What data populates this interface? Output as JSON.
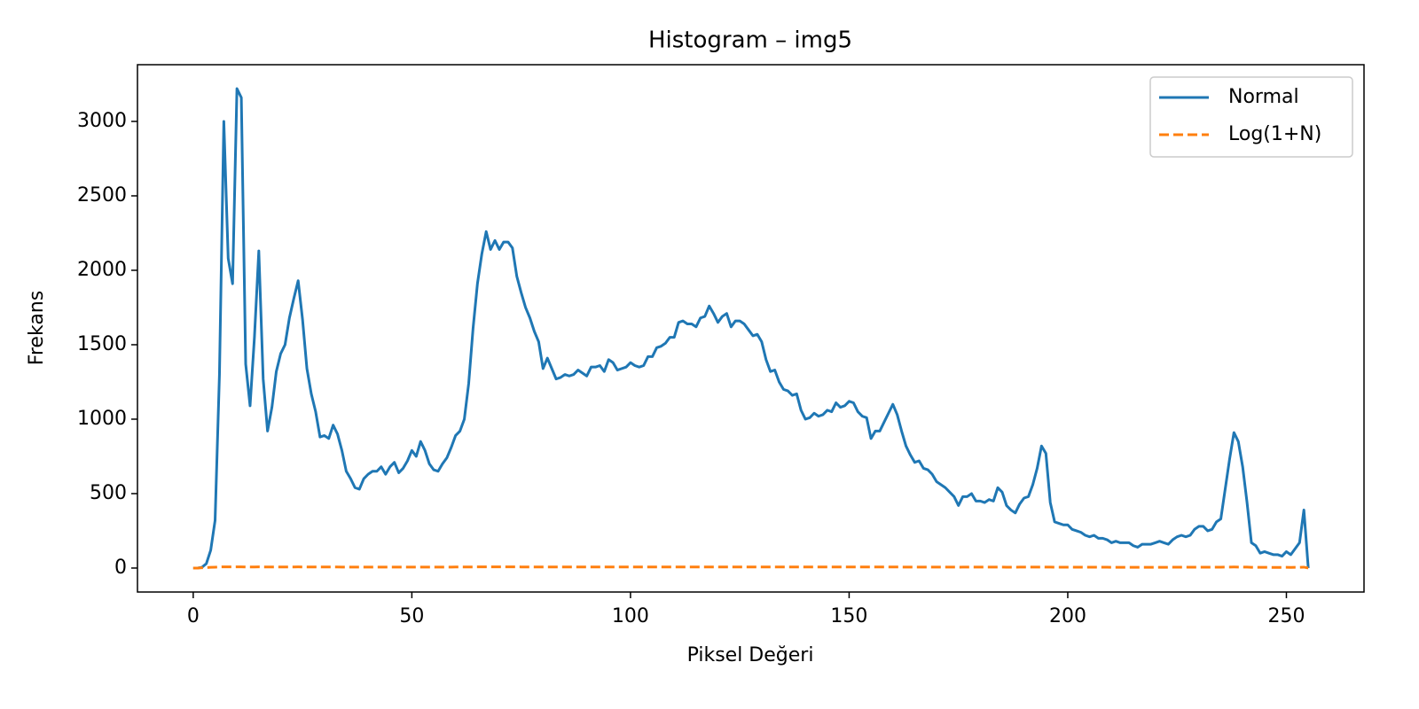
{
  "chart_data": {
    "type": "line",
    "title": "Histogram – img5",
    "x_label": "Piksel Değeri",
    "y_label": "Frekans",
    "x": [
      0,
      1,
      2,
      3,
      4,
      5,
      6,
      7,
      8,
      9,
      10,
      11,
      12,
      13,
      14,
      15,
      16,
      17,
      18,
      19,
      20,
      21,
      22,
      23,
      24,
      25,
      26,
      27,
      28,
      29,
      30,
      31,
      32,
      33,
      34,
      35,
      36,
      37,
      38,
      39,
      40,
      41,
      42,
      43,
      44,
      45,
      46,
      47,
      48,
      49,
      50,
      51,
      52,
      53,
      54,
      55,
      56,
      57,
      58,
      59,
      60,
      61,
      62,
      63,
      64,
      65,
      66,
      67,
      68,
      69,
      70,
      71,
      72,
      73,
      74,
      75,
      76,
      77,
      78,
      79,
      80,
      81,
      82,
      83,
      84,
      85,
      86,
      87,
      88,
      89,
      90,
      91,
      92,
      93,
      94,
      95,
      96,
      97,
      98,
      99,
      100,
      101,
      102,
      103,
      104,
      105,
      106,
      107,
      108,
      109,
      110,
      111,
      112,
      113,
      114,
      115,
      116,
      117,
      118,
      119,
      120,
      121,
      122,
      123,
      124,
      125,
      126,
      127,
      128,
      129,
      130,
      131,
      132,
      133,
      134,
      135,
      136,
      137,
      138,
      139,
      140,
      141,
      142,
      143,
      144,
      145,
      146,
      147,
      148,
      149,
      150,
      151,
      152,
      153,
      154,
      155,
      156,
      157,
      158,
      159,
      160,
      161,
      162,
      163,
      164,
      165,
      166,
      167,
      168,
      169,
      170,
      171,
      172,
      173,
      174,
      175,
      176,
      177,
      178,
      179,
      180,
      181,
      182,
      183,
      184,
      185,
      186,
      187,
      188,
      189,
      190,
      191,
      192,
      193,
      194,
      195,
      196,
      197,
      198,
      199,
      200,
      201,
      202,
      203,
      204,
      205,
      206,
      207,
      208,
      209,
      210,
      211,
      212,
      213,
      214,
      215,
      216,
      217,
      218,
      219,
      220,
      221,
      222,
      223,
      224,
      225,
      226,
      227,
      228,
      229,
      230,
      231,
      232,
      233,
      234,
      235,
      236,
      237,
      238,
      239,
      240,
      241,
      242,
      243,
      244,
      245,
      246,
      247,
      248,
      249,
      250,
      251,
      252,
      253,
      254,
      255
    ],
    "series": [
      {
        "name": "Normal",
        "color": "#1f77b4",
        "dash": false,
        "values": [
          0,
          0,
          5,
          30,
          120,
          320,
          1300,
          3000,
          2080,
          1910,
          3220,
          3160,
          1370,
          1090,
          1550,
          2130,
          1270,
          920,
          1080,
          1320,
          1440,
          1500,
          1680,
          1810,
          1930,
          1670,
          1340,
          1170,
          1050,
          880,
          890,
          870,
          960,
          900,
          790,
          650,
          600,
          540,
          530,
          600,
          630,
          650,
          650,
          680,
          630,
          680,
          710,
          640,
          670,
          720,
          790,
          750,
          850,
          790,
          700,
          660,
          650,
          700,
          740,
          810,
          890,
          920,
          1000,
          1240,
          1610,
          1910,
          2110,
          2260,
          2140,
          2200,
          2140,
          2190,
          2190,
          2150,
          1960,
          1850,
          1750,
          1680,
          1590,
          1520,
          1340,
          1410,
          1340,
          1270,
          1280,
          1300,
          1290,
          1300,
          1330,
          1310,
          1290,
          1350,
          1350,
          1360,
          1320,
          1400,
          1380,
          1330,
          1340,
          1350,
          1380,
          1360,
          1350,
          1360,
          1420,
          1420,
          1480,
          1490,
          1510,
          1550,
          1550,
          1650,
          1660,
          1640,
          1640,
          1620,
          1680,
          1690,
          1760,
          1710,
          1650,
          1690,
          1710,
          1620,
          1660,
          1660,
          1640,
          1600,
          1560,
          1570,
          1520,
          1400,
          1320,
          1330,
          1250,
          1200,
          1190,
          1160,
          1170,
          1060,
          1000,
          1010,
          1040,
          1020,
          1030,
          1060,
          1050,
          1110,
          1080,
          1090,
          1120,
          1110,
          1050,
          1020,
          1010,
          870,
          920,
          920,
          980,
          1040,
          1100,
          1030,
          920,
          820,
          760,
          710,
          720,
          670,
          660,
          630,
          580,
          560,
          540,
          510,
          480,
          420,
          480,
          480,
          500,
          450,
          450,
          440,
          460,
          450,
          540,
          510,
          420,
          390,
          370,
          430,
          470,
          480,
          560,
          670,
          820,
          770,
          440,
          310,
          300,
          290,
          290,
          260,
          250,
          240,
          220,
          210,
          220,
          200,
          200,
          190,
          170,
          180,
          170,
          170,
          170,
          150,
          140,
          160,
          160,
          160,
          170,
          180,
          170,
          160,
          190,
          210,
          220,
          210,
          220,
          260,
          280,
          280,
          250,
          260,
          310,
          330,
          530,
          730,
          910,
          850,
          680,
          440,
          170,
          150,
          100,
          110,
          100,
          90,
          90,
          80,
          110,
          90,
          130,
          170,
          390,
          0
        ]
      },
      {
        "name": "Log(1+N)",
        "color": "#ff7f0e",
        "dash": true,
        "values": [
          0,
          0,
          1.8,
          3.4,
          4.8,
          5.8,
          7.2,
          8.0,
          7.6,
          7.6,
          8.1,
          8.1,
          7.2,
          7.0,
          7.3,
          7.7,
          7.1,
          6.8,
          7.0,
          7.2,
          7.3,
          7.3,
          7.4,
          7.5,
          7.6,
          7.4,
          7.2,
          7.1,
          7.0,
          6.8,
          6.8,
          6.8,
          6.9,
          6.8,
          6.7,
          6.5,
          6.4,
          6.3,
          6.3,
          6.4,
          6.4,
          6.5,
          6.5,
          6.5,
          6.4,
          6.5,
          6.6,
          6.5,
          6.5,
          6.6,
          6.7,
          6.6,
          6.7,
          6.7,
          6.6,
          6.5,
          6.5,
          6.6,
          6.6,
          6.7,
          6.8,
          6.8,
          6.9,
          7.1,
          7.4,
          7.6,
          7.7,
          7.7,
          7.7,
          7.7,
          7.7,
          7.7,
          7.7,
          7.7,
          7.6,
          7.5,
          7.5,
          7.4,
          7.4,
          7.3,
          7.2,
          7.3,
          7.2,
          7.1,
          7.2,
          7.2,
          7.2,
          7.2,
          7.2,
          7.2,
          7.2,
          7.2,
          7.2,
          7.2,
          7.2,
          7.2,
          7.2,
          7.2,
          7.2,
          7.2,
          7.2,
          7.2,
          7.2,
          7.2,
          7.3,
          7.3,
          7.3,
          7.3,
          7.3,
          7.3,
          7.3,
          7.4,
          7.4,
          7.4,
          7.4,
          7.4,
          7.4,
          7.4,
          7.5,
          7.4,
          7.4,
          7.4,
          7.4,
          7.4,
          7.4,
          7.4,
          7.4,
          7.4,
          7.4,
          7.4,
          7.3,
          7.2,
          7.2,
          7.2,
          7.1,
          7.1,
          7.1,
          7.1,
          7.1,
          7.0,
          6.9,
          6.9,
          6.9,
          6.9,
          6.9,
          7.0,
          7.0,
          7.0,
          7.0,
          7.0,
          7.0,
          7.0,
          7.0,
          6.9,
          6.9,
          6.8,
          6.8,
          6.8,
          6.9,
          6.9,
          7.0,
          6.9,
          6.8,
          6.7,
          6.6,
          6.6,
          6.6,
          6.5,
          6.5,
          6.4,
          6.4,
          6.3,
          6.3,
          6.2,
          6.2,
          6.0,
          6.2,
          6.2,
          6.2,
          6.1,
          6.1,
          6.1,
          6.1,
          6.1,
          6.3,
          6.2,
          6.0,
          6.0,
          5.9,
          6.1,
          6.2,
          6.2,
          6.3,
          6.5,
          6.7,
          6.6,
          6.1,
          5.7,
          5.7,
          5.7,
          5.7,
          5.6,
          5.5,
          5.5,
          5.4,
          5.4,
          5.4,
          5.3,
          5.3,
          5.3,
          5.1,
          5.2,
          5.1,
          5.1,
          5.1,
          5.0,
          4.9,
          5.1,
          5.1,
          5.1,
          5.1,
          5.2,
          5.1,
          5.1,
          5.3,
          5.4,
          5.4,
          5.4,
          5.4,
          5.6,
          5.6,
          5.6,
          5.5,
          5.6,
          5.7,
          5.8,
          6.3,
          6.6,
          6.8,
          6.7,
          6.5,
          6.1,
          5.1,
          5.0,
          4.6,
          4.7,
          4.6,
          4.5,
          4.5,
          4.4,
          4.7,
          4.5,
          4.9,
          5.1,
          6.0,
          0
        ]
      }
    ],
    "xlim": [
      -12.75,
      267.75
    ],
    "xticks": [
      0,
      50,
      100,
      150,
      200,
      250
    ],
    "ylim": [
      -161,
      3381
    ],
    "yticks": [
      0,
      500,
      1000,
      1500,
      2000,
      2500,
      3000
    ],
    "grid": false,
    "legend": "upper right"
  }
}
